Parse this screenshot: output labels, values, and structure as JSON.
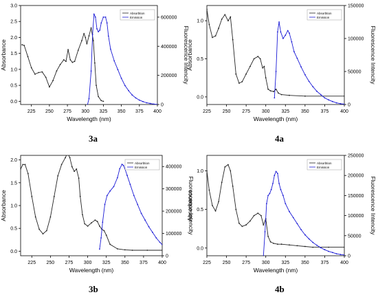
{
  "chart_data": [
    {
      "id": "3a",
      "type": "line",
      "caption": "3a",
      "xlabel": "Wavelength (nm)",
      "ylabel": "Absorbance",
      "y2label": "Fluorescence Intencity",
      "xlim": [
        210,
        400
      ],
      "xticks": [
        225,
        250,
        275,
        300,
        325,
        350,
        375,
        400
      ],
      "ylim": [
        -0.1,
        3.0
      ],
      "yticks": [
        0.0,
        0.5,
        1.0,
        1.5,
        2.0,
        2.5,
        3.0
      ],
      "y2lim": [
        0,
        680000
      ],
      "y2ticks": [
        0,
        200000,
        400000,
        600000
      ],
      "legend": {
        "position": "top-right",
        "entries": [
          "Absorbtion",
          "Emission"
        ]
      },
      "series": [
        {
          "name": "Absorbtion",
          "color": "#222222",
          "axis": "left",
          "x": [
            212,
            215,
            220,
            225,
            230,
            235,
            240,
            245,
            250,
            255,
            260,
            265,
            270,
            273,
            276,
            279,
            282,
            285,
            290,
            295,
            298,
            300,
            302,
            305,
            308,
            311,
            313,
            315,
            318,
            322,
            325
          ],
          "y": [
            1.77,
            1.75,
            1.4,
            1.05,
            0.85,
            0.9,
            0.92,
            0.75,
            0.45,
            0.65,
            0.95,
            1.15,
            1.3,
            1.25,
            1.62,
            1.3,
            1.22,
            1.25,
            1.6,
            1.9,
            2.12,
            2.0,
            1.8,
            2.05,
            2.3,
            1.9,
            1.2,
            0.5,
            0.15,
            0.02,
            0.0
          ]
        },
        {
          "name": "Emission",
          "color": "#1a1ad6",
          "axis": "right",
          "x": [
            303,
            305,
            308,
            310,
            312,
            314,
            316,
            318,
            320,
            322,
            325,
            328,
            330,
            332,
            335,
            340,
            345,
            350,
            355,
            360,
            365,
            370,
            375,
            380,
            385,
            390,
            395,
            400
          ],
          "y": [
            0,
            40000,
            230000,
            480000,
            620000,
            600000,
            520000,
            500000,
            510000,
            560000,
            600000,
            600000,
            560000,
            470000,
            380000,
            300000,
            240000,
            180000,
            130000,
            95000,
            65000,
            45000,
            30000,
            20000,
            12000,
            7000,
            3000,
            1000
          ]
        }
      ]
    },
    {
      "id": "4a",
      "type": "line",
      "caption": "4a",
      "xlabel": "Wavelength (nm)",
      "ylabel": "Absorbance",
      "y2label": "Fluorescence Intencity",
      "xlim": [
        225,
        400
      ],
      "xticks": [
        225,
        250,
        275,
        300,
        325,
        350,
        375,
        400
      ],
      "ylim": [
        -0.1,
        1.2
      ],
      "yticks": [
        0.0,
        0.5,
        1.0
      ],
      "y2lim": [
        0,
        150000
      ],
      "y2ticks": [
        0,
        50000,
        100000,
        150000
      ],
      "legend": {
        "position": "top-right",
        "entries": [
          "Absorbtion",
          "Emission"
        ]
      },
      "series": [
        {
          "name": "Absorbtion",
          "color": "#222222",
          "axis": "left",
          "x": [
            225,
            228,
            232,
            236,
            240,
            244,
            248,
            252,
            255,
            258,
            262,
            266,
            270,
            275,
            280,
            285,
            290,
            293,
            296,
            298,
            300,
            303,
            306,
            310,
            313,
            316,
            320,
            330,
            350,
            400
          ],
          "y": [
            1.15,
            0.95,
            0.78,
            0.8,
            0.9,
            1.02,
            1.08,
            1.0,
            1.05,
            0.75,
            0.3,
            0.18,
            0.2,
            0.3,
            0.4,
            0.5,
            0.53,
            0.5,
            0.38,
            0.4,
            0.25,
            0.1,
            0.08,
            0.07,
            0.1,
            0.05,
            0.03,
            0.02,
            0.01,
            0.01
          ]
        },
        {
          "name": "Emission",
          "color": "#1a1ad6",
          "axis": "right",
          "x": [
            311,
            313,
            315,
            317,
            319,
            322,
            325,
            328,
            330,
            333,
            336,
            340,
            345,
            350,
            355,
            360,
            365,
            370,
            375,
            380,
            385,
            390,
            395,
            400
          ],
          "y": [
            10000,
            50000,
            110000,
            125000,
            110000,
            100000,
            105000,
            112000,
            108000,
            95000,
            80000,
            70000,
            57000,
            45000,
            35000,
            27000,
            20000,
            15000,
            10000,
            7000,
            4500,
            2500,
            1200,
            500
          ]
        }
      ]
    },
    {
      "id": "3b",
      "type": "line",
      "caption": "3b",
      "xlabel": "Wavelength (nm)",
      "ylabel": "Absorbance",
      "y2label": "Fluorescence Intencity",
      "xlim": [
        210,
        400
      ],
      "xticks": [
        225,
        250,
        275,
        300,
        325,
        350,
        375,
        400
      ],
      "ylim": [
        -0.1,
        2.1
      ],
      "yticks": [
        0.0,
        0.5,
        1.0,
        1.5,
        2.0
      ],
      "y2lim": [
        0,
        450000
      ],
      "y2ticks": [
        0,
        100000,
        200000,
        300000,
        400000
      ],
      "legend": {
        "position": "top-right",
        "entries": [
          "Absorbtion",
          "Emission"
        ]
      },
      "series": [
        {
          "name": "Absorbtion",
          "color": "#222222",
          "axis": "left",
          "x": [
            210,
            213,
            216,
            220,
            225,
            230,
            235,
            240,
            245,
            250,
            255,
            260,
            265,
            270,
            273,
            276,
            279,
            282,
            285,
            288,
            290,
            293,
            296,
            300,
            305,
            310,
            313,
            316,
            319,
            322,
            325,
            330,
            340,
            350,
            360,
            380,
            400
          ],
          "y": [
            1.8,
            1.9,
            1.9,
            1.7,
            1.2,
            0.75,
            0.48,
            0.38,
            0.45,
            0.75,
            1.2,
            1.65,
            1.9,
            2.05,
            2.15,
            2.05,
            1.85,
            1.75,
            1.8,
            1.6,
            1.2,
            0.8,
            0.6,
            0.55,
            0.62,
            0.68,
            0.65,
            0.55,
            0.48,
            0.45,
            0.35,
            0.15,
            0.05,
            0.03,
            0.02,
            0.02,
            0.02
          ]
        },
        {
          "name": "Emission",
          "color": "#1a1ad6",
          "axis": "right",
          "x": [
            316,
            318,
            320,
            323,
            326,
            330,
            335,
            340,
            343,
            346,
            348,
            350,
            353,
            357,
            362,
            367,
            372,
            377,
            382,
            387,
            392,
            397,
            400
          ],
          "y": [
            30000,
            80000,
            150000,
            230000,
            270000,
            290000,
            310000,
            350000,
            390000,
            410000,
            405000,
            390000,
            360000,
            320000,
            270000,
            230000,
            190000,
            160000,
            130000,
            105000,
            80000,
            60000,
            50000
          ]
        }
      ]
    },
    {
      "id": "4b",
      "type": "line",
      "caption": "4b",
      "xlabel": "Wavelength (nm)",
      "ylabel": "Absorbance",
      "y2label": "Fluorescence Intencity",
      "xlim": [
        225,
        400
      ],
      "xticks": [
        225,
        250,
        275,
        300,
        325,
        350,
        375,
        400
      ],
      "ylim": [
        -0.1,
        1.2
      ],
      "yticks": [
        0.0,
        0.5,
        1.0
      ],
      "y2lim": [
        0,
        250000
      ],
      "y2ticks": [
        0,
        50000,
        100000,
        150000,
        200000,
        250000
      ],
      "legend": {
        "position": "top-right",
        "entries": [
          "Absorbtion",
          "Emission"
        ]
      },
      "series": [
        {
          "name": "Absorbtion",
          "color": "#222222",
          "axis": "left",
          "x": [
            225,
            228,
            232,
            236,
            240,
            244,
            248,
            252,
            255,
            258,
            262,
            266,
            270,
            275,
            280,
            285,
            290,
            294,
            297,
            300,
            303,
            306,
            310,
            315,
            320,
            330,
            340,
            350,
            360,
            380,
            400
          ],
          "y": [
            1.0,
            0.75,
            0.55,
            0.48,
            0.6,
            0.85,
            1.05,
            1.08,
            1.0,
            0.8,
            0.5,
            0.32,
            0.28,
            0.3,
            0.35,
            0.42,
            0.45,
            0.42,
            0.3,
            0.38,
            0.15,
            0.08,
            0.06,
            0.05,
            0.05,
            0.04,
            0.03,
            0.02,
            0.01,
            0.01,
            0.01
          ]
        },
        {
          "name": "Emission",
          "color": "#1a1ad6",
          "axis": "right",
          "x": [
            297,
            299,
            301,
            303,
            305,
            307,
            309,
            311,
            313,
            315,
            317,
            319,
            322,
            325,
            330,
            335,
            340,
            345,
            350,
            355,
            360,
            365,
            370,
            375,
            380,
            385,
            390,
            395,
            400
          ],
          "y": [
            0,
            60000,
            130000,
            150000,
            155000,
            165000,
            180000,
            200000,
            210000,
            205000,
            180000,
            165000,
            150000,
            130000,
            110000,
            95000,
            80000,
            65000,
            52000,
            42000,
            33000,
            26000,
            20000,
            15000,
            11000,
            8000,
            5000,
            3000,
            2000
          ]
        }
      ]
    }
  ]
}
